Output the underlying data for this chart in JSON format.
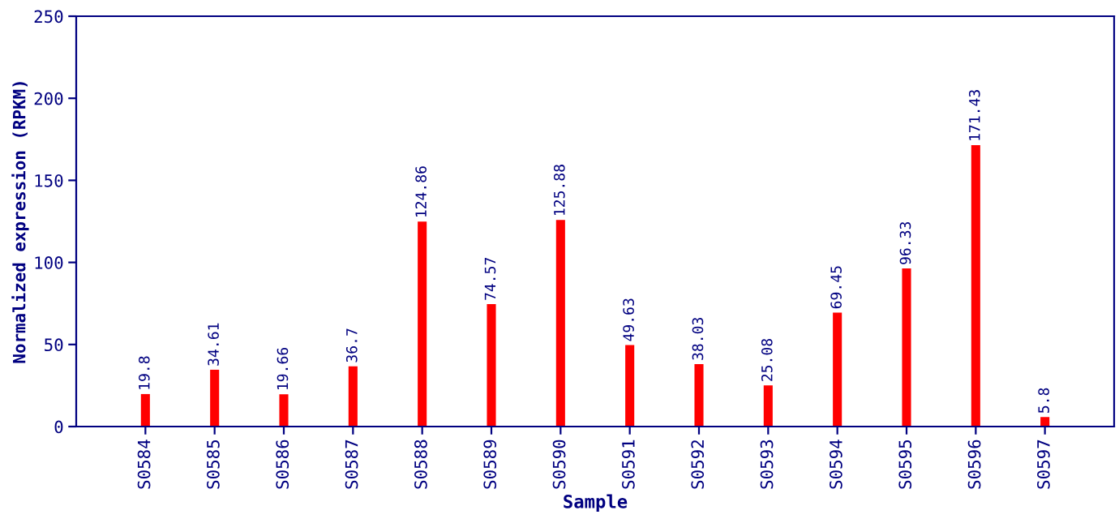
{
  "chart_data": {
    "type": "bar",
    "xlabel": "Sample",
    "ylabel": "Normalized expression (RPKM)",
    "categories": [
      "S0584",
      "S0585",
      "S0586",
      "S0587",
      "S0588",
      "S0589",
      "S0590",
      "S0591",
      "S0592",
      "S0593",
      "S0594",
      "S0595",
      "S0596",
      "S0597"
    ],
    "values": [
      19.8,
      34.61,
      19.66,
      36.7,
      124.86,
      74.57,
      125.88,
      49.63,
      38.03,
      25.08,
      69.45,
      96.33,
      171.43,
      5.8
    ],
    "color": "#ff0000",
    "ylim": [
      0,
      250
    ],
    "yticks": [
      0,
      50,
      100,
      150,
      200,
      250
    ],
    "grid": false,
    "data_labels": true
  }
}
